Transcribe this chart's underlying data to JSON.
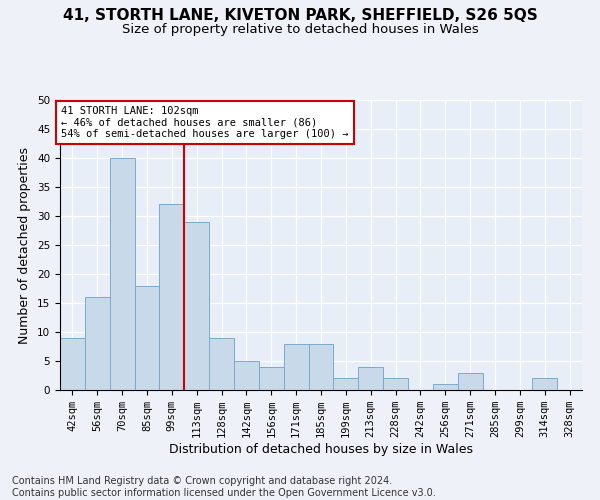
{
  "title": "41, STORTH LANE, KIVETON PARK, SHEFFIELD, S26 5QS",
  "subtitle": "Size of property relative to detached houses in Wales",
  "xlabel": "Distribution of detached houses by size in Wales",
  "ylabel": "Number of detached properties",
  "categories": [
    "42sqm",
    "56sqm",
    "70sqm",
    "85sqm",
    "99sqm",
    "113sqm",
    "128sqm",
    "142sqm",
    "156sqm",
    "171sqm",
    "185sqm",
    "199sqm",
    "213sqm",
    "228sqm",
    "242sqm",
    "256sqm",
    "271sqm",
    "285sqm",
    "299sqm",
    "314sqm",
    "328sqm"
  ],
  "values": [
    9,
    16,
    40,
    18,
    32,
    29,
    9,
    5,
    4,
    8,
    8,
    2,
    4,
    2,
    0,
    1,
    3,
    0,
    0,
    2,
    0
  ],
  "bar_color": "#c8daea",
  "bar_edge_color": "#7baac8",
  "vline_x": 4.5,
  "vline_color": "#cc0000",
  "annotation_text": "41 STORTH LANE: 102sqm\n← 46% of detached houses are smaller (86)\n54% of semi-detached houses are larger (100) →",
  "annotation_box_color": "#ffffff",
  "annotation_box_edge": "#cc0000",
  "ylim": [
    0,
    50
  ],
  "yticks": [
    0,
    5,
    10,
    15,
    20,
    25,
    30,
    35,
    40,
    45,
    50
  ],
  "footer": "Contains HM Land Registry data © Crown copyright and database right 2024.\nContains public sector information licensed under the Open Government Licence v3.0.",
  "background_color": "#eef2f8",
  "plot_bg_color": "#e8eef8",
  "grid_color": "#ffffff",
  "title_fontsize": 11,
  "subtitle_fontsize": 9.5,
  "axis_label_fontsize": 9,
  "tick_fontsize": 7.5,
  "footer_fontsize": 7
}
